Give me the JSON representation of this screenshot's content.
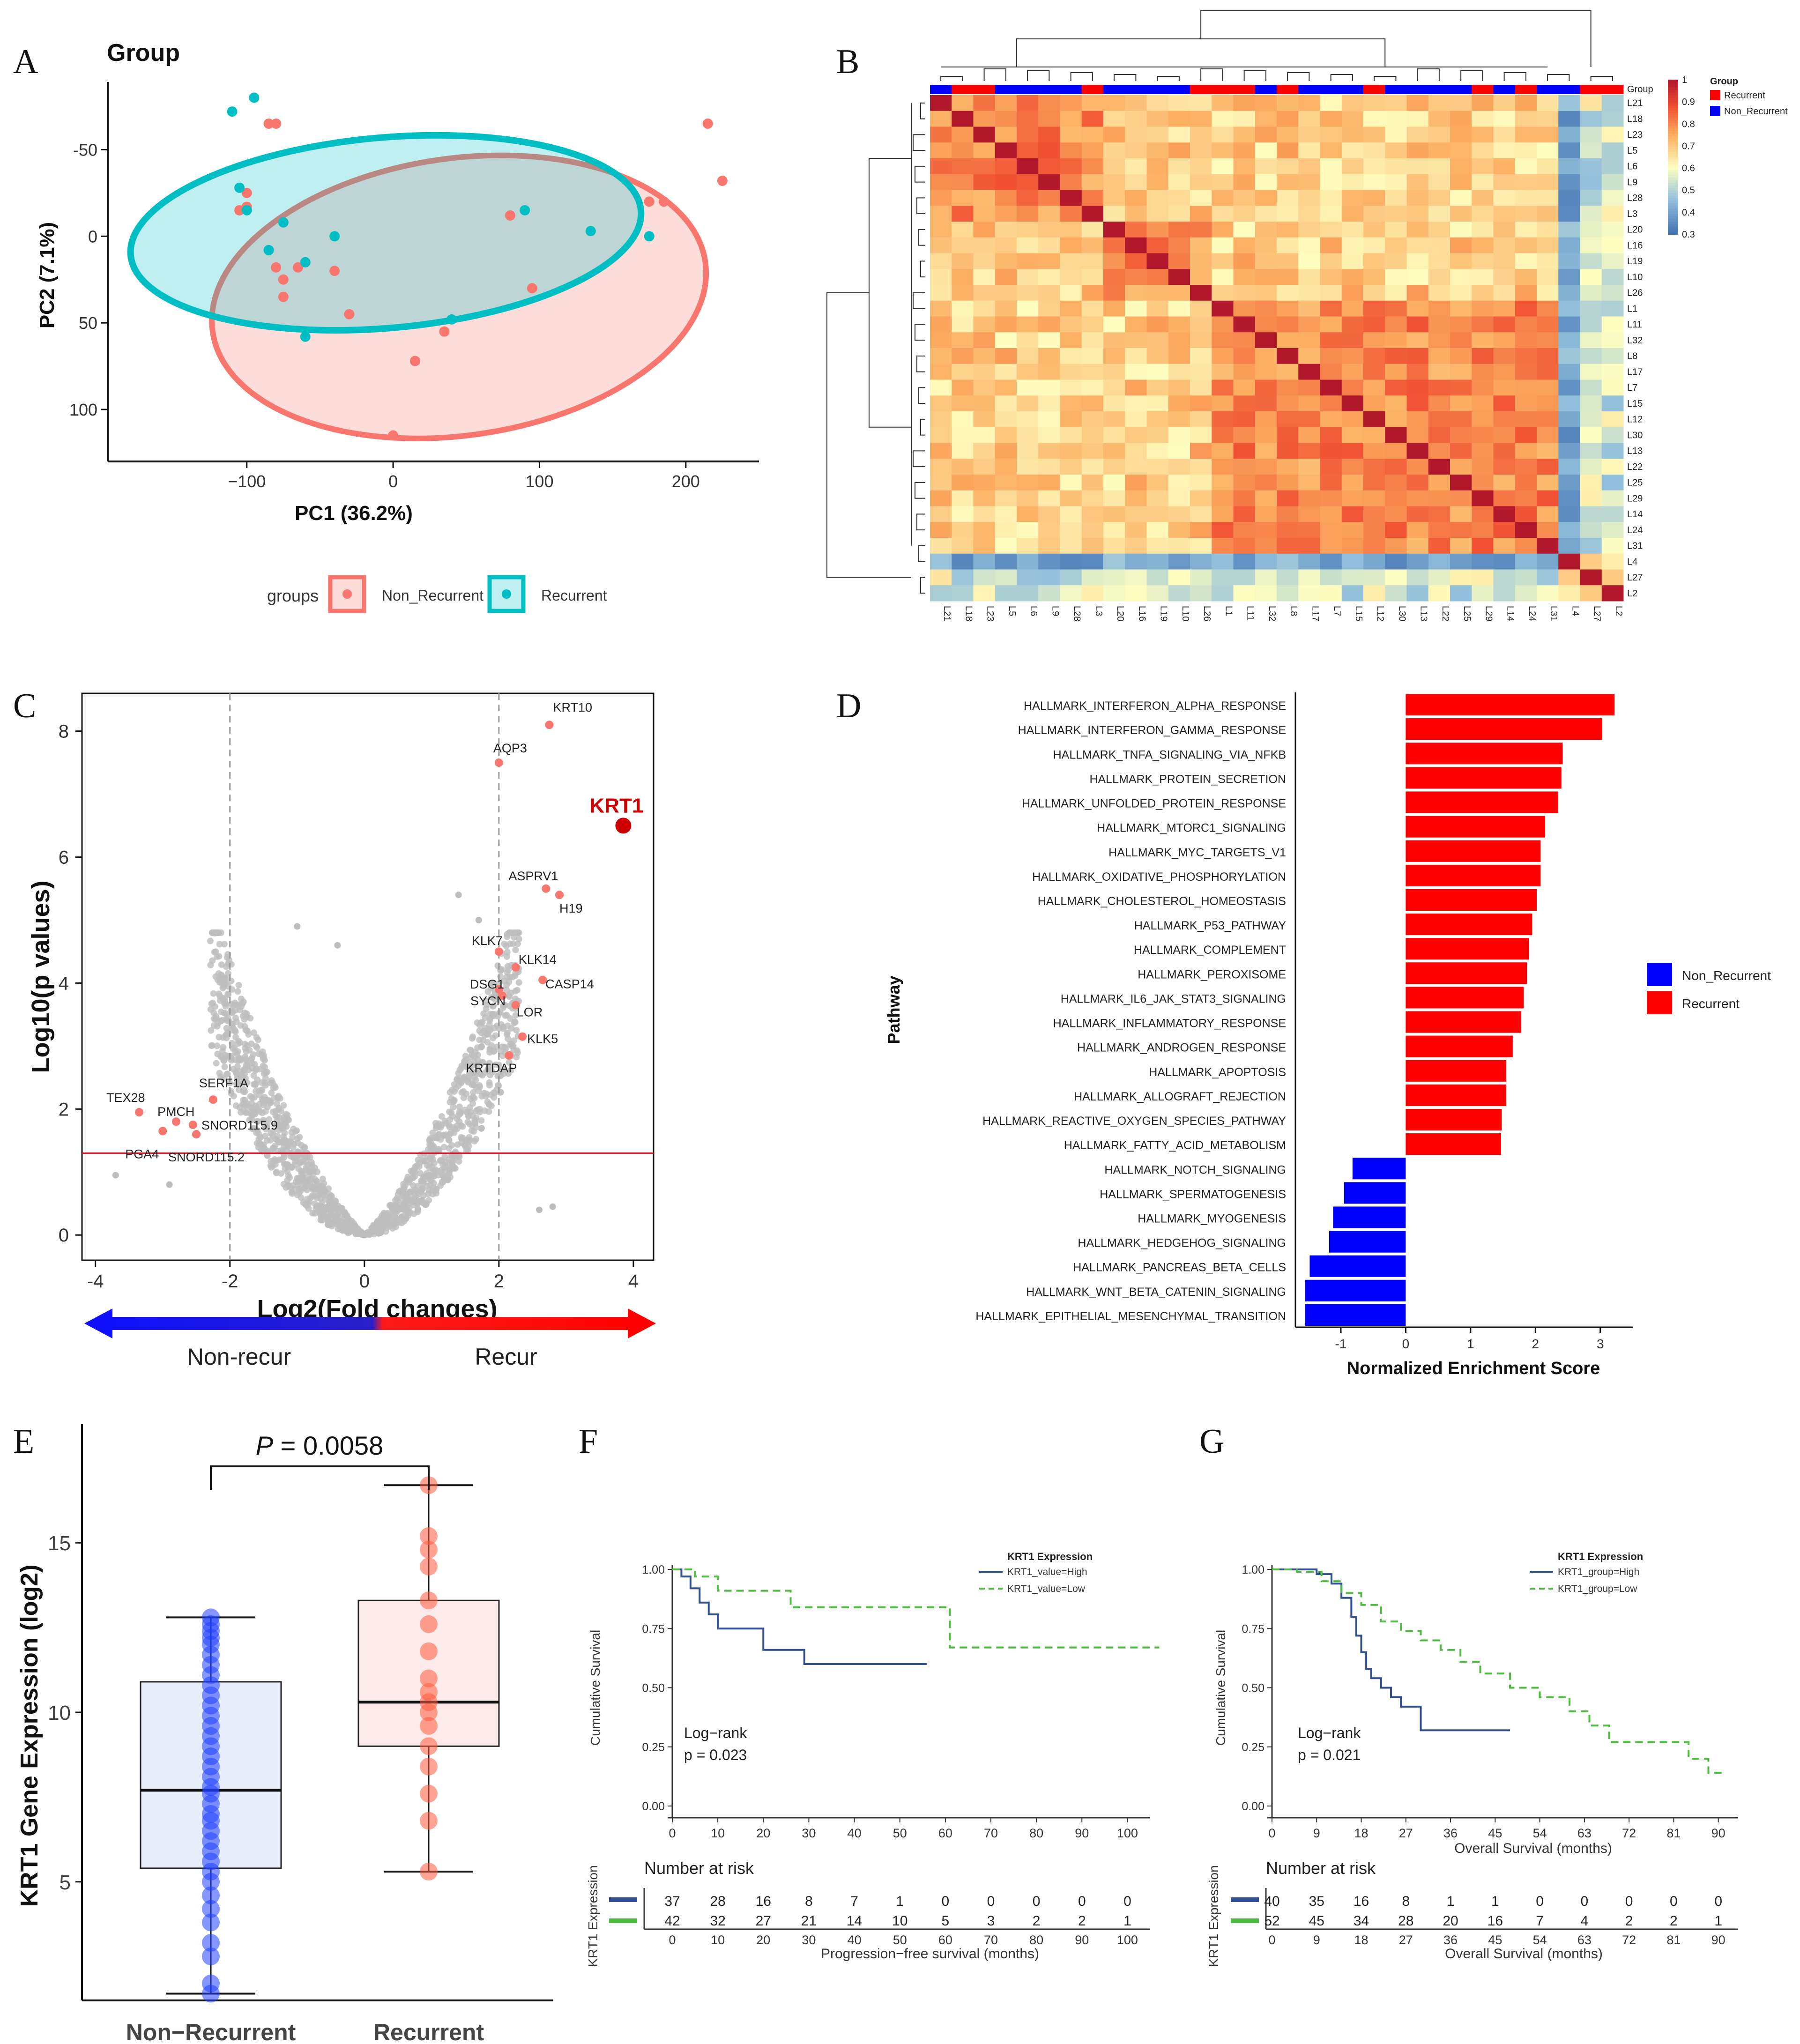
{
  "colors": {
    "red": "#f8766d",
    "teal": "#00bfc4",
    "bar_red": "#ff0000",
    "bar_blue": "#0000ff",
    "grey": "#bdbdbd",
    "km_high": "#2f4f8f",
    "km_low": "#4cbb3f",
    "box_blue": "#1f3fff",
    "box_red": "#ff5a3c"
  },
  "panels": {
    "A": "A",
    "B": "B",
    "C": "C",
    "D": "D",
    "E": "E",
    "F": "F",
    "G": "G"
  },
  "chart_data": [
    {
      "id": "A",
      "type": "scatter",
      "title": "Group",
      "xlabel": "PC1 (36.2%)",
      "ylabel": "PC2 (7.1%)",
      "xlim": [
        -195,
        250
      ],
      "ylim": [
        -85,
        130
      ],
      "y_reversed": true,
      "x_ticks": [
        "−100",
        "0",
        "100",
        "200"
      ],
      "x_tick_values": [
        -100,
        0,
        100,
        200
      ],
      "y_ticks": [
        "-50",
        "0",
        "50",
        "100"
      ],
      "y_tick_values": [
        -50,
        0,
        50,
        100
      ],
      "legend": {
        "title": "groups",
        "items": [
          "Non_Recurrent",
          "Recurrent"
        ]
      },
      "series": [
        {
          "name": "Non_Recurrent",
          "color": "#f8766d",
          "x": [
            -100,
            -85,
            -80,
            -105,
            -100,
            -80,
            -65,
            -75,
            -60,
            -40,
            -75,
            -30,
            80,
            95,
            175,
            185,
            215,
            225,
            15,
            35,
            0
          ],
          "y": [
            -25,
            -65,
            -65,
            -15,
            -17,
            18,
            18,
            25,
            15,
            20,
            35,
            45,
            -12,
            30,
            -20,
            -20,
            -65,
            -32,
            72,
            55,
            115
          ],
          "ellipse": {
            "cx": 45,
            "cy": 35,
            "rx": 170,
            "ry": 80,
            "angle": -8
          }
        },
        {
          "name": "Recurrent",
          "color": "#00bfc4",
          "x": [
            -95,
            -110,
            -105,
            -100,
            -75,
            -85,
            -40,
            -60,
            -60,
            40,
            90,
            135,
            175
          ],
          "y": [
            -80,
            -72,
            -28,
            -15,
            -8,
            8,
            0,
            15,
            58,
            48,
            -15,
            -3,
            0
          ],
          "ellipse": {
            "cx": -5,
            "cy": -2,
            "rx": 175,
            "ry": 55,
            "angle": -5
          }
        }
      ]
    },
    {
      "id": "B",
      "type": "heatmap",
      "labels": [
        "L21",
        "L18",
        "L23",
        "L5",
        "L6",
        "L9",
        "L28",
        "L3",
        "L20",
        "L16",
        "L19",
        "L10",
        "L26",
        "L1",
        "L11",
        "L32",
        "L8",
        "L17",
        "L7",
        "L15",
        "L12",
        "L30",
        "L13",
        "L22",
        "L25",
        "L29",
        "L14",
        "L24",
        "L31",
        "L4",
        "L27",
        "L2"
      ],
      "group": [
        "Non_Recurrent",
        "Recurrent",
        "Recurrent",
        "Non_Recurrent",
        "Non_Recurrent",
        "Non_Recurrent",
        "Non_Recurrent",
        "Recurrent",
        "Non_Recurrent",
        "Non_Recurrent",
        "Non_Recurrent",
        "Non_Recurrent",
        "Recurrent",
        "Recurrent",
        "Recurrent",
        "Non_Recurrent",
        "Recurrent",
        "Non_Recurrent",
        "Non_Recurrent",
        "Non_Recurrent",
        "Recurrent",
        "Non_Recurrent",
        "Non_Recurrent",
        "Non_Recurrent",
        "Non_Recurrent",
        "Recurrent",
        "Non_Recurrent",
        "Recurrent",
        "Non_Recurrent",
        "Non_Recurrent",
        "Recurrent",
        "Recurrent"
      ],
      "outliers": [
        "L4",
        "L27",
        "L2"
      ],
      "clusters": [
        8,
        5,
        16
      ],
      "scale_ticks": [
        "1",
        "0.9",
        "0.8",
        "0.7",
        "0.6",
        "0.5",
        "0.4",
        "0.3"
      ],
      "scale_values": [
        1,
        0.9,
        0.8,
        0.7,
        0.6,
        0.5,
        0.4,
        0.3
      ],
      "legend": {
        "title": "Group",
        "items": [
          "Recurrent",
          "Non_Recurrent"
        ],
        "group_header": "Group"
      }
    },
    {
      "id": "C",
      "type": "scatter",
      "subtype": "volcano",
      "xlabel": "Log2(Fold changes)",
      "ylabel": "Log10(p values)",
      "xlim": [
        -4.2,
        4.3
      ],
      "ylim": [
        -0.4,
        8.6
      ],
      "x_ticks": [
        "-4",
        "-2",
        "0",
        "2",
        "4"
      ],
      "x_tick_values": [
        -4,
        -2,
        0,
        2,
        4
      ],
      "y_ticks": [
        "0",
        "2",
        "4",
        "6",
        "8"
      ],
      "y_tick_values": [
        0,
        2,
        4,
        6,
        8
      ],
      "threshold_y": 1.3,
      "fold_lines": [
        -2,
        2
      ],
      "labeled": [
        {
          "gene": "KRT10",
          "x": 2.75,
          "y": 8.1
        },
        {
          "gene": "AQP3",
          "x": 2.0,
          "y": 7.5
        },
        {
          "gene": "KRT1",
          "x": 3.85,
          "y": 6.5
        },
        {
          "gene": "ASPRV1",
          "x": 2.7,
          "y": 5.5
        },
        {
          "gene": "H19",
          "x": 2.9,
          "y": 5.4
        },
        {
          "gene": "KLK7",
          "x": 2.0,
          "y": 4.5
        },
        {
          "gene": "KLK14",
          "x": 2.25,
          "y": 4.25
        },
        {
          "gene": "DSG1",
          "x": 2.0,
          "y": 3.9
        },
        {
          "gene": "CASP14",
          "x": 2.65,
          "y": 4.05
        },
        {
          "gene": "SYCN",
          "x": 2.05,
          "y": 3.8
        },
        {
          "gene": "LOR",
          "x": 2.25,
          "y": 3.65
        },
        {
          "gene": "KLK5",
          "x": 2.35,
          "y": 3.15
        },
        {
          "gene": "KRTDAP",
          "x": 2.15,
          "y": 2.85
        },
        {
          "gene": "SERF1A",
          "x": -2.25,
          "y": 2.15
        },
        {
          "gene": "TEX28",
          "x": -3.35,
          "y": 1.95
        },
        {
          "gene": "PMCH",
          "x": -2.8,
          "y": 1.8
        },
        {
          "gene": "SNORD115.9",
          "x": -2.55,
          "y": 1.75
        },
        {
          "gene": "PGA4",
          "x": -3.0,
          "y": 1.65
        },
        {
          "gene": "SNORD115.2",
          "x": -2.5,
          "y": 1.6
        }
      ],
      "arrow": {
        "left": "Non-recur",
        "right": "Recur"
      }
    },
    {
      "id": "D",
      "type": "bar",
      "orientation": "horizontal",
      "xlabel": "Normalized Enrichment Score",
      "ylabel": "Pathway",
      "xlim": [
        -1.7,
        3.5
      ],
      "x_ticks": [
        "-1",
        "0",
        "1",
        "2",
        "3"
      ],
      "x_tick_values": [
        -1,
        0,
        1,
        2,
        3
      ],
      "categories": [
        "HALLMARK_INTERFERON_ALPHA_RESPONSE",
        "HALLMARK_INTERFERON_GAMMA_RESPONSE",
        "HALLMARK_TNFA_SIGNALING_VIA_NFKB",
        "HALLMARK_PROTEIN_SECRETION",
        "HALLMARK_UNFOLDED_PROTEIN_RESPONSE",
        "HALLMARK_MTORC1_SIGNALING",
        "HALLMARK_MYC_TARGETS_V1",
        "HALLMARK_OXIDATIVE_PHOSPHORYLATION",
        "HALLMARK_CHOLESTEROL_HOMEOSTASIS",
        "HALLMARK_P53_PATHWAY",
        "HALLMARK_COMPLEMENT",
        "HALLMARK_PEROXISOME",
        "HALLMARK_IL6_JAK_STAT3_SIGNALING",
        "HALLMARK_INFLAMMATORY_RESPONSE",
        "HALLMARK_ANDROGEN_RESPONSE",
        "HALLMARK_APOPTOSIS",
        "HALLMARK_ALLOGRAFT_REJECTION",
        "HALLMARK_REACTIVE_OXYGEN_SPECIES_PATHWAY",
        "HALLMARK_FATTY_ACID_METABOLISM",
        "HALLMARK_NOTCH_SIGNALING",
        "HALLMARK_SPERMATOGENESIS",
        "HALLMARK_MYOGENESIS",
        "HALLMARK_HEDGEHOG_SIGNALING",
        "HALLMARK_PANCREAS_BETA_CELLS",
        "HALLMARK_WNT_BETA_CATENIN_SIGNALING",
        "HALLMARK_EPITHELIAL_MESENCHYMAL_TRANSITION"
      ],
      "values": [
        3.22,
        3.03,
        2.42,
        2.4,
        2.35,
        2.15,
        2.08,
        2.08,
        2.02,
        1.95,
        1.9,
        1.87,
        1.82,
        1.78,
        1.65,
        1.55,
        1.55,
        1.48,
        1.47,
        -0.82,
        -0.95,
        -1.12,
        -1.18,
        -1.48,
        -1.55,
        -1.55
      ],
      "legend": {
        "items": [
          "Non_Recurrent",
          "Recurrent"
        ]
      }
    },
    {
      "id": "E",
      "type": "box",
      "ylabel": "KRT1 Gene Expression (log2)",
      "categories": [
        "Non−Recurrent",
        "Recurrent"
      ],
      "ylim": [
        1.5,
        18.5
      ],
      "y_ticks": [
        "5",
        "10",
        "15"
      ],
      "y_tick_values": [
        5,
        10,
        15
      ],
      "p_label": "P",
      "p_value": "= 0.0058",
      "boxes": [
        {
          "name": "Non−Recurrent",
          "min": 1.7,
          "q1": 5.4,
          "median": 7.7,
          "q3": 10.9,
          "max": 12.8
        },
        {
          "name": "Recurrent",
          "min": 5.3,
          "q1": 9.0,
          "median": 10.3,
          "q3": 13.3,
          "max": 16.7
        }
      ],
      "points": [
        [
          1.7,
          2.0,
          2.8,
          3.2,
          3.8,
          4.2,
          4.6,
          5.0,
          5.3,
          5.6,
          5.9,
          6.2,
          6.5,
          6.8,
          7.0,
          7.3,
          7.6,
          7.8,
          8.1,
          8.4,
          8.7,
          9.0,
          9.3,
          9.6,
          9.9,
          10.2,
          10.5,
          10.8,
          11.1,
          11.4,
          11.7,
          12.0,
          12.2,
          12.4,
          12.6,
          12.8
        ],
        [
          5.3,
          6.8,
          7.6,
          8.4,
          9.0,
          9.6,
          10.0,
          10.3,
          10.6,
          11.0,
          11.8,
          12.6,
          13.3,
          14.3,
          14.8,
          15.2,
          16.7
        ]
      ]
    },
    {
      "id": "F",
      "type": "line",
      "subtype": "kaplan-meier",
      "xlabel": "Progression−free survival (months)",
      "ylabel": "Cumulative Survival",
      "xlim": [
        0,
        105
      ],
      "ylim": [
        0,
        1
      ],
      "x_ticks": [
        "0",
        "10",
        "20",
        "30",
        "40",
        "50",
        "60",
        "70",
        "80",
        "90",
        "100"
      ],
      "y_ticks": [
        "0.00",
        "0.25",
        "0.50",
        "0.75",
        "1.00"
      ],
      "legend": {
        "title": "KRT1 Expression",
        "items": [
          "KRT1_value=High",
          "KRT1_value=Low"
        ]
      },
      "logrank": "Log−rank",
      "pval": "p = 0.023",
      "series": [
        {
          "name": "KRT1_value=High",
          "x": [
            0,
            2,
            4,
            6,
            8,
            10,
            12,
            20,
            29,
            56
          ],
          "y": [
            1.0,
            0.97,
            0.92,
            0.86,
            0.81,
            0.75,
            0.75,
            0.66,
            0.6,
            0.6
          ]
        },
        {
          "name": "KRT1_value=Low",
          "x": [
            0,
            2,
            5,
            10,
            26,
            61,
            107
          ],
          "y": [
            1.0,
            1.0,
            0.97,
            0.91,
            0.84,
            0.67,
            0.67
          ]
        }
      ],
      "risk": {
        "title": "Number at risk",
        "ylabel": "KRT1 Expression",
        "times": [
          "0",
          "10",
          "20",
          "30",
          "40",
          "50",
          "60",
          "70",
          "80",
          "90",
          "100"
        ],
        "high": [
          "37",
          "28",
          "16",
          "8",
          "7",
          "1",
          "0",
          "0",
          "0",
          "0",
          "0"
        ],
        "low": [
          "42",
          "32",
          "27",
          "21",
          "14",
          "10",
          "5",
          "3",
          "2",
          "2",
          "1"
        ]
      }
    },
    {
      "id": "G",
      "type": "line",
      "subtype": "kaplan-meier",
      "xlabel": "Overall Survival (months)",
      "ylabel": "Cumulative Survival",
      "xlim": [
        0,
        94
      ],
      "ylim": [
        0,
        1
      ],
      "x_ticks": [
        "0",
        "9",
        "18",
        "27",
        "36",
        "45",
        "54",
        "63",
        "72",
        "81",
        "90"
      ],
      "y_ticks": [
        "0.00",
        "0.25",
        "0.50",
        "0.75",
        "1.00"
      ],
      "legend": {
        "title": "KRT1 Expression",
        "items": [
          "KRT1_group=High",
          "KRT1_group=Low"
        ]
      },
      "logrank": "Log−rank",
      "pval": "p = 0.021",
      "series": [
        {
          "name": "KRT1_group=High",
          "x": [
            0,
            6,
            9,
            12,
            14,
            16,
            17,
            18,
            19,
            20,
            22,
            24,
            26,
            28,
            30,
            34,
            48
          ],
          "y": [
            1.0,
            1.0,
            0.98,
            0.94,
            0.88,
            0.8,
            0.72,
            0.65,
            0.58,
            0.54,
            0.5,
            0.46,
            0.42,
            0.42,
            0.32,
            0.32,
            0.32
          ]
        },
        {
          "name": "KRT1_group=Low",
          "x": [
            0,
            5,
            10,
            14,
            18,
            22,
            26,
            30,
            34,
            38,
            42,
            48,
            54,
            60,
            64,
            68,
            84,
            88,
            91
          ],
          "y": [
            1.0,
            0.99,
            0.95,
            0.9,
            0.85,
            0.78,
            0.74,
            0.7,
            0.66,
            0.61,
            0.56,
            0.5,
            0.46,
            0.4,
            0.34,
            0.27,
            0.2,
            0.14,
            0.14
          ]
        }
      ],
      "risk": {
        "title": "Number at risk",
        "ylabel": "KRT1 Expression",
        "times": [
          "0",
          "9",
          "18",
          "27",
          "36",
          "45",
          "54",
          "63",
          "72",
          "81",
          "90"
        ],
        "high": [
          "40",
          "35",
          "16",
          "8",
          "1",
          "1",
          "0",
          "0",
          "0",
          "0",
          "0"
        ],
        "low": [
          "52",
          "45",
          "34",
          "28",
          "20",
          "16",
          "7",
          "4",
          "2",
          "2",
          "1"
        ]
      }
    }
  ]
}
